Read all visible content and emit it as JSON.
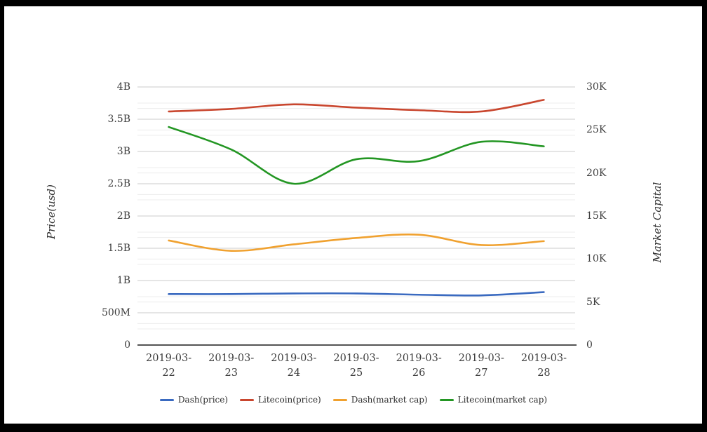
{
  "chart_data": {
    "type": "line",
    "title": "",
    "categories": [
      "2019-03-22",
      "2019-03-23",
      "2019-03-24",
      "2019-03-25",
      "2019-03-26",
      "2019-03-27",
      "2019-03-28"
    ],
    "left_axis": {
      "label": "Price(usd)",
      "ticks": [
        "4B",
        "3.5B",
        "3B",
        "2.5B",
        "2B",
        "1.5B",
        "1B",
        "500M",
        "0"
      ],
      "range_billions": [
        0,
        4
      ]
    },
    "right_axis": {
      "label": "Market Capital",
      "ticks": [
        "30K",
        "25K",
        "20K",
        "15K",
        "10K",
        "5K",
        "0"
      ],
      "range_thousands": [
        0,
        30
      ]
    },
    "series": [
      {
        "name": "Dash(price)",
        "color": "#3a6ac0",
        "values_left_axis_billions": [
          0.79,
          0.79,
          0.8,
          0.8,
          0.78,
          0.77,
          0.82
        ]
      },
      {
        "name": "Litecoin(price)",
        "color": "#c9462e",
        "values_left_axis_billions": [
          3.62,
          3.66,
          3.73,
          3.68,
          3.64,
          3.62,
          3.8
        ]
      },
      {
        "name": "Dash(market cap)",
        "color": "#f0a12f",
        "values_left_axis_billions": [
          1.62,
          1.46,
          1.56,
          1.66,
          1.71,
          1.55,
          1.61
        ]
      },
      {
        "name": "Litecoin(market cap)",
        "color": "#239623",
        "values_left_axis_billions": [
          3.38,
          3.03,
          2.5,
          2.88,
          2.85,
          3.15,
          3.08
        ]
      }
    ],
    "legend": {
      "position": "bottom",
      "items": [
        "Dash(price)",
        "Litecoin(price)",
        "Dash(market cap)",
        "Litecoin(market cap)"
      ]
    },
    "grid": {
      "major_color": "#cbcbcb",
      "minor_color": "#ececec",
      "axis_line_color": "#1c1c1c"
    }
  }
}
